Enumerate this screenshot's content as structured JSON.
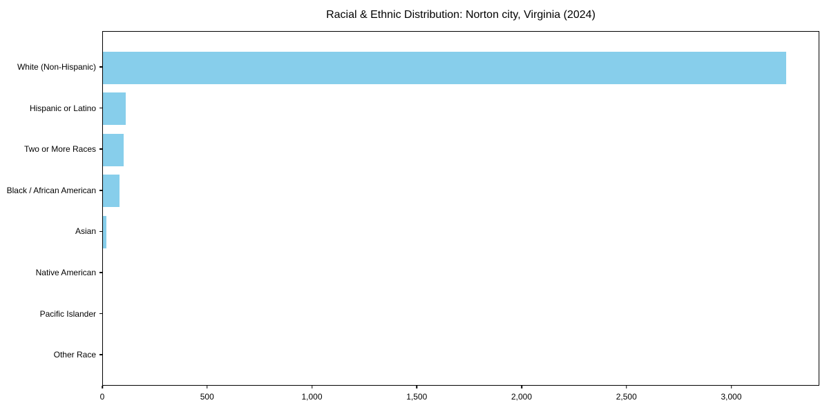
{
  "chart_data": {
    "type": "bar",
    "orientation": "horizontal",
    "title": "Racial & Ethnic Distribution: Norton city, Virginia (2024)",
    "categories": [
      "White (Non-Hispanic)",
      "Hispanic or Latino",
      "Two or More Races",
      "Black / African American",
      "Asian",
      "Native American",
      "Pacific Islander",
      "Other Race"
    ],
    "values": [
      3260,
      110,
      100,
      78,
      15,
      0,
      0,
      0
    ],
    "xlabel": "",
    "ylabel": "",
    "xlim": [
      0,
      3420
    ],
    "x_ticks": [
      0,
      500,
      1000,
      1500,
      2000,
      2500,
      3000
    ],
    "x_tick_labels": [
      "0",
      "500",
      "1,000",
      "1,500",
      "2,000",
      "2,500",
      "3,000"
    ],
    "bar_color": "#87ceeb",
    "axis_color": "#000000",
    "background_color": "#ffffff",
    "grid": false,
    "legend": null
  }
}
